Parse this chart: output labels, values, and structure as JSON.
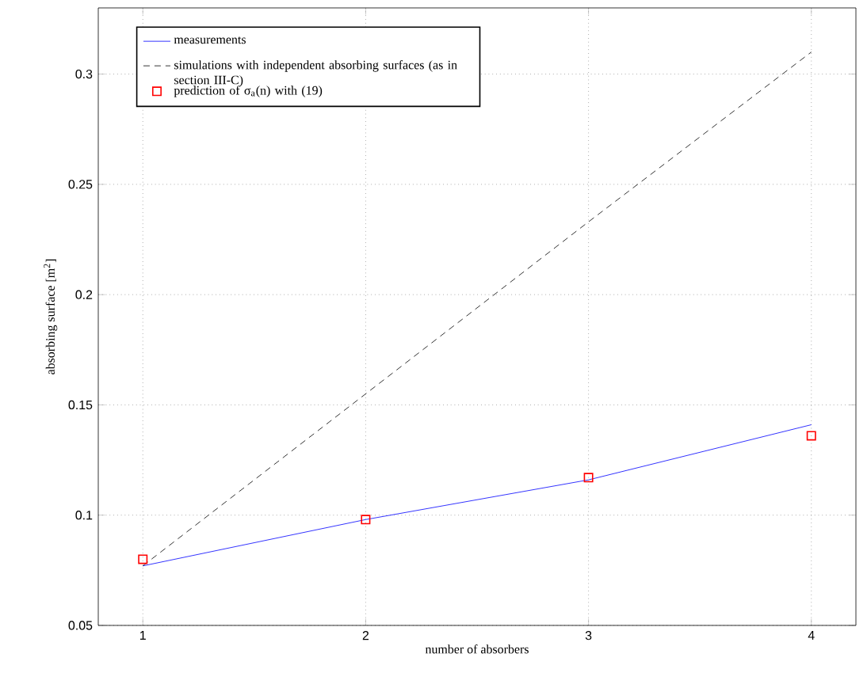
{
  "chart_data": {
    "type": "line",
    "xlabel": "number of absorbers",
    "ylabel": "absorbing surface [m$^{2}$]",
    "x": [
      1,
      2,
      3,
      4
    ],
    "series": [
      {
        "name": "measurements",
        "color": "#0000ff",
        "line_style": "solid",
        "marker": "none",
        "values": [
          0.077,
          0.098,
          0.116,
          0.141
        ]
      },
      {
        "name": "simulations with independent absorbing surfaces (as in section III-C)",
        "color": "#000000",
        "line_style": "dashed",
        "marker": "none",
        "values": [
          0.077,
          0.155,
          0.233,
          0.31
        ]
      },
      {
        "name": "prediction of σ$_{a}$(n) with (19)",
        "type": "scatter",
        "color": "#ff0000",
        "marker": "square",
        "values": [
          0.08,
          0.098,
          0.117,
          0.136
        ]
      }
    ],
    "xlim": [
      0.8,
      4.2
    ],
    "ylim": [
      0.05,
      0.33
    ],
    "xticks": [
      1,
      2,
      3,
      4
    ],
    "yticks": [
      0.05,
      0.1,
      0.15,
      0.2,
      0.25,
      0.3
    ],
    "grid": true,
    "legend": "top left"
  }
}
